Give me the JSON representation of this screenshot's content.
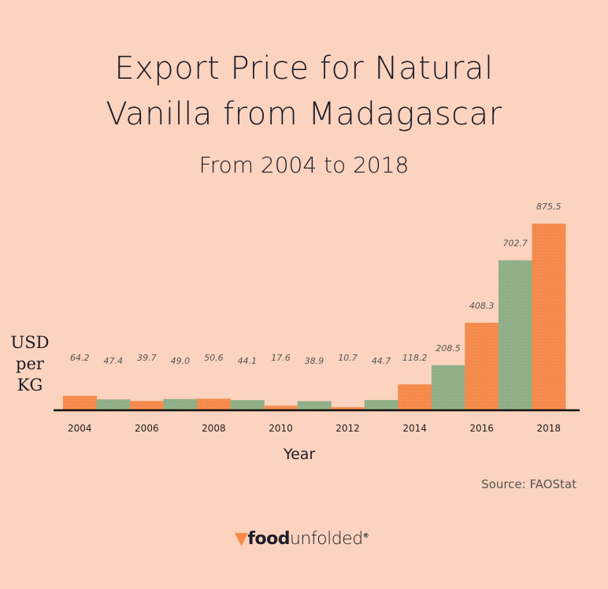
{
  "chart_data": {
    "type": "bar",
    "title": "Export Price for Natural Vanilla from Madagascar",
    "subtitle": "From 2004 to 2018",
    "xlabel": "Year",
    "ylabel": "USD per KG",
    "categories": [
      "2004",
      "2005",
      "2006",
      "2007",
      "2008",
      "2009",
      "2010",
      "2011",
      "2012",
      "2013",
      "2014",
      "2015",
      "2016",
      "2017",
      "2018"
    ],
    "tick_labels": [
      "2004",
      "2006",
      "2008",
      "2010",
      "2012",
      "2014",
      "2016",
      "2018"
    ],
    "values": [
      64.2,
      47.4,
      39.7,
      49.0,
      50.6,
      44.1,
      17.6,
      38.9,
      10.7,
      44.7,
      118.2,
      208.5,
      408.3,
      702.7,
      875.5
    ],
    "value_labels": [
      "64.2",
      "47.4",
      "39.7",
      "49.0",
      "50.6",
      "44.1",
      "17.6",
      "38.9",
      "10.7",
      "44.7",
      "118.2",
      "208.5",
      "408.3",
      "702.7",
      "875.5"
    ],
    "ylim": [
      0,
      875.5
    ],
    "grid": false,
    "colors": [
      "#F5894A",
      "#8FAE86"
    ]
  },
  "title_line1": "Export Price for Natural",
  "title_line2": "Vanilla from Madagascar",
  "ylabel_lines": [
    "USD",
    "per",
    "KG"
  ],
  "source": "Source: FAOStat",
  "logo": {
    "bold": "food",
    "light": "unfolded",
    "mark": "®"
  }
}
